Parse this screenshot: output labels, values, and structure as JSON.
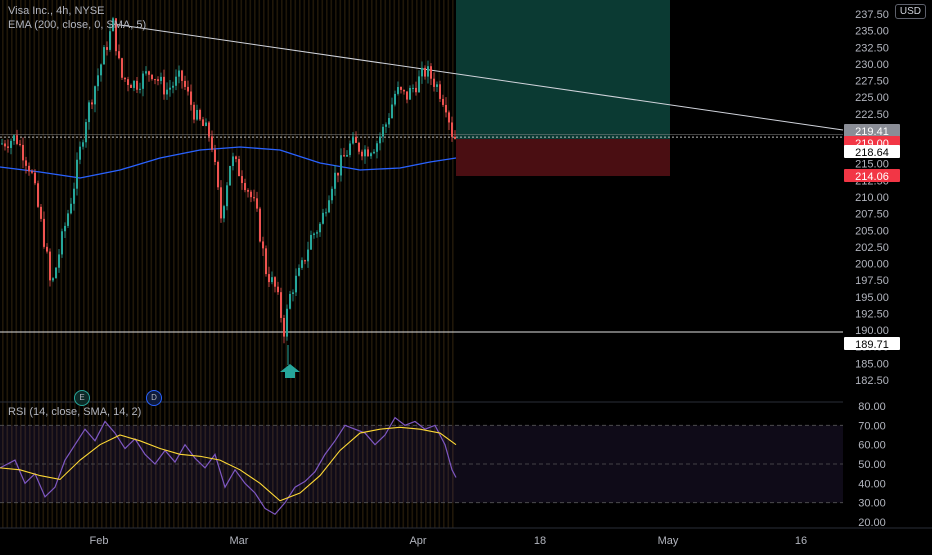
{
  "header": {
    "symbol_line": "Visa Inc., 4h, NYSE",
    "ema_line": "EMA (200, close, 0, SMA, 5)",
    "currency": "USD"
  },
  "rsi": {
    "legend": "RSI (14, close, SMA, 14, 2)",
    "ticks": [
      "80.00",
      "70.00",
      "60.00",
      "50.00",
      "40.00",
      "30.00",
      "20.00"
    ]
  },
  "price_axis": {
    "ticks": [
      "237.50",
      "235.00",
      "232.50",
      "230.00",
      "227.50",
      "225.00",
      "222.50",
      "220.00",
      "217.50",
      "215.00",
      "212.50",
      "210.00",
      "207.50",
      "205.00",
      "202.50",
      "200.00",
      "197.50",
      "195.00",
      "192.50",
      "190.00",
      "187.50",
      "185.00",
      "182.50"
    ],
    "tags": [
      {
        "label": "219.41",
        "bg": "#8a8d96",
        "fg": "#ffffff",
        "value": 219.41
      },
      {
        "label": "219.00",
        "bg": "#f23645",
        "fg": "#ffffff",
        "value": 219.0
      },
      {
        "label": "218.64",
        "bg": "#ffffff",
        "fg": "#000000",
        "value": 218.64
      },
      {
        "label": "214.06",
        "bg": "#f23645",
        "fg": "#ffffff",
        "value": 214.06
      },
      {
        "label": "189.71",
        "bg": "#ffffff",
        "fg": "#000000",
        "value": 189.71
      }
    ]
  },
  "time_axis": {
    "labels": [
      "Feb",
      "Mar",
      "Apr",
      "18",
      "May",
      "16"
    ]
  },
  "events": {
    "earnings": "E",
    "dividend": "D"
  },
  "colors": {
    "up": "#26a69a",
    "down": "#ef5350",
    "ema": "#2962ff",
    "rsi": "#7e57c2",
    "rsi_ma": "#fdd835",
    "trendline": "#d1d4dc",
    "target_zone": "#0b3a33",
    "stop_zone": "#4a0e12"
  }
}
